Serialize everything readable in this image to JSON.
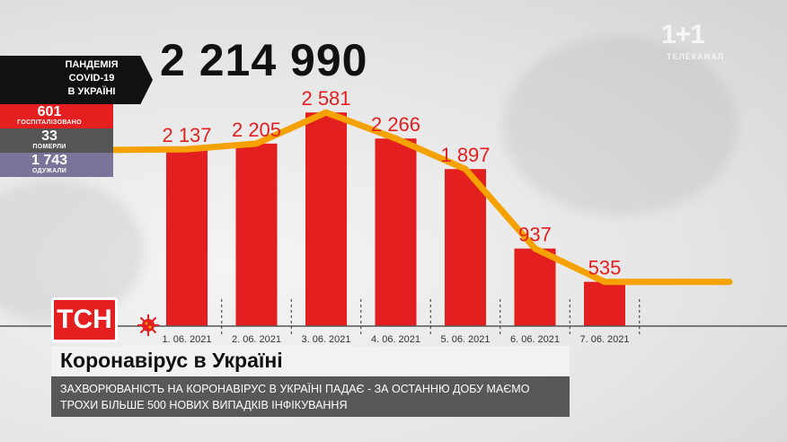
{
  "logo": {
    "text": "1+1",
    "sub": "ТЕЛЕКАНАЛ"
  },
  "total": "2 214 990",
  "stats": {
    "title_lines": [
      "ПАНДЕМІЯ",
      "COVID-19",
      "В УКРАЇНІ"
    ],
    "rows": [
      {
        "value": "601",
        "label": "ГОСПІТАЛІЗОВАНО",
        "color": "#e31f1f"
      },
      {
        "value": "33",
        "label": "ПОМЕРЛИ",
        "color": "#555555"
      },
      {
        "value": "1 743",
        "label": "ОДУЖАЛИ",
        "color": "#7b7399"
      }
    ]
  },
  "chart_data": {
    "type": "bar",
    "categories": [
      "1. 06. 2021",
      "2. 06. 2021",
      "3. 06. 2021",
      "4. 06. 2021",
      "5. 06. 2021",
      "6. 06. 2021",
      "7. 06. 2021"
    ],
    "values": [
      2137,
      2205,
      2581,
      2266,
      1897,
      937,
      535
    ],
    "value_labels": [
      "2 137",
      "2 205",
      "2 581",
      "2 266",
      "1 897",
      "937",
      "535"
    ],
    "bar_color": "#e31f1f",
    "line_color": "#f5a200",
    "ylim": [
      0,
      2800
    ],
    "grid": false
  },
  "colors": {
    "accent": "#e31f1f",
    "line": "#f5a200"
  },
  "brand": "ТСН",
  "headline": "Коронавірус в Україні",
  "ticker": "ЗАХВОРЮВАНІСТЬ НА КОРОНАВІРУС В УКРАЇНІ ПАДАЄ - ЗА ОСТАННЮ ДОБУ МАЄМО ТРОХИ БІЛЬШЕ 500 НОВИХ ВИПАДКІВ ІНФІКУВАННЯ"
}
